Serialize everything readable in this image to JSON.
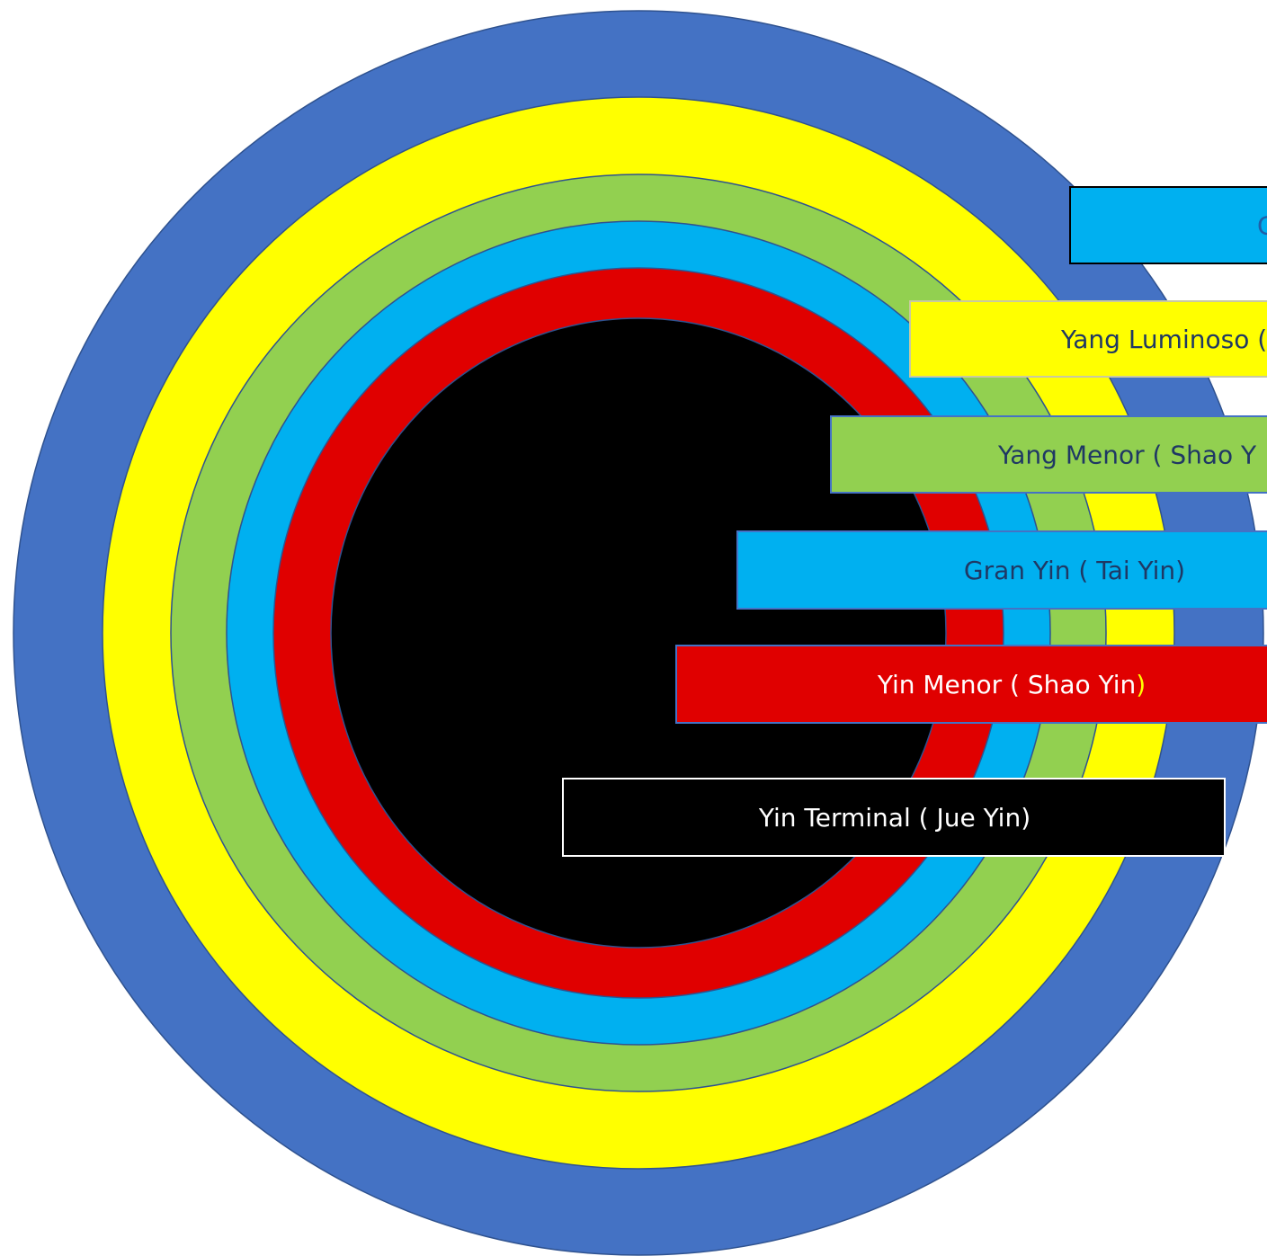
{
  "rings": [
    {
      "name": "ring-blue-outer",
      "color": "#4472c4"
    },
    {
      "name": "ring-yellow",
      "color": "#ffff00"
    },
    {
      "name": "ring-green",
      "color": "#92d050"
    },
    {
      "name": "ring-cyan",
      "color": "#00b0f0"
    },
    {
      "name": "ring-red",
      "color": "#e00000"
    },
    {
      "name": "ring-black-core",
      "color": "#000000"
    }
  ],
  "labels": [
    {
      "name": "label-gran-yang",
      "text": "G",
      "text_suffix": "",
      "fill": "#00b0f0",
      "stroke": "#000000",
      "text_color": "#1f5fa8",
      "suffix_color": "#1f5fa8"
    },
    {
      "name": "label-yang-luminoso",
      "text": "Yang Luminoso (",
      "text_suffix": "",
      "fill": "#ffff00",
      "stroke": "#c9c9a0",
      "text_color": "#1f3864",
      "suffix_color": "#1f3864"
    },
    {
      "name": "label-yang-menor",
      "text": "Yang Menor ( Shao Y",
      "text_suffix": "",
      "fill": "#92d050",
      "stroke": "#4472c4",
      "text_color": "#1f3864",
      "suffix_color": "#1f3864"
    },
    {
      "name": "label-gran-yin",
      "text": "Gran Yin ( Tai Yin)",
      "text_suffix": "",
      "fill": "#00b0f0",
      "stroke": "#4472c4",
      "text_color": "#1f3864",
      "suffix_color": "#1f3864"
    },
    {
      "name": "label-yin-menor",
      "text": "Yin Menor ( Shao Yin",
      "text_suffix": ")",
      "fill": "#e00000",
      "stroke": "#4472c4",
      "text_color": "#ffffff",
      "suffix_color": "#ffff00"
    },
    {
      "name": "label-yin-terminal",
      "text": "Yin Terminal ( Jue Yin)",
      "text_suffix": "",
      "fill": "#000000",
      "stroke": "#ffffff",
      "text_color": "#ffffff",
      "suffix_color": "#ffffff"
    }
  ]
}
